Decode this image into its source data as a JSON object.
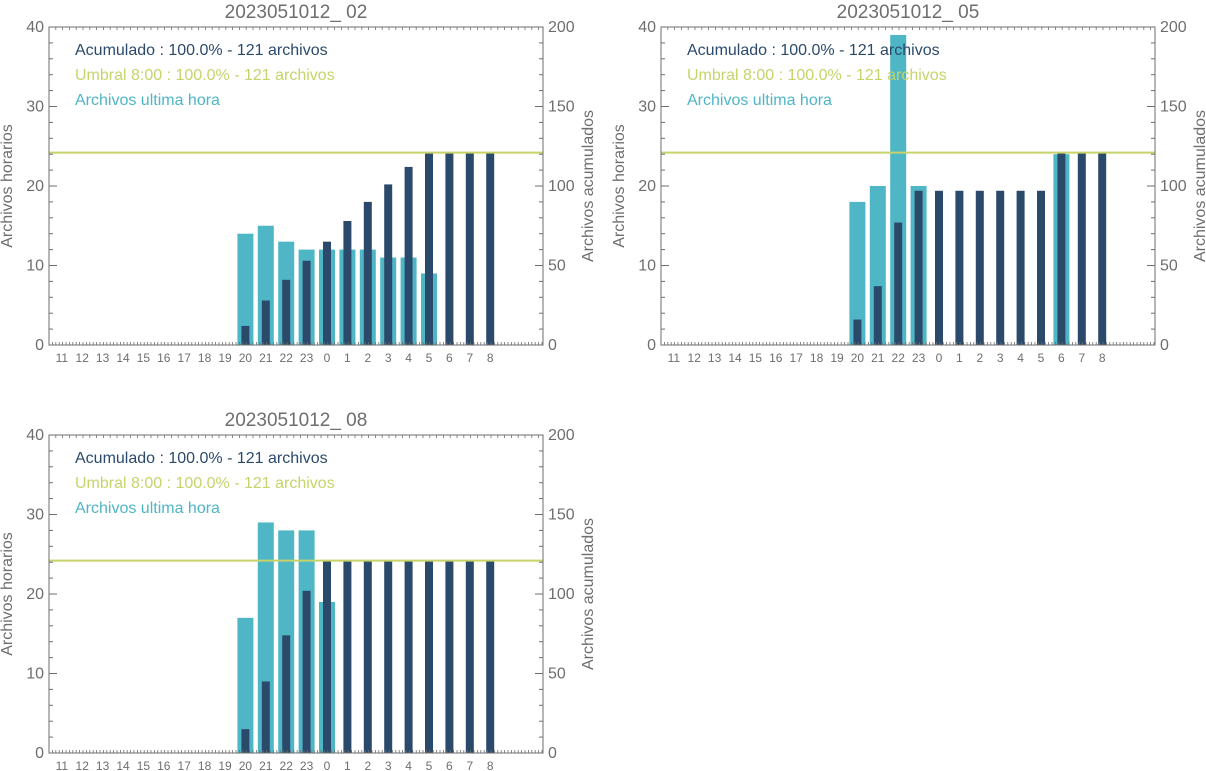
{
  "colors": {
    "hourly": "#4fb6c6",
    "cumulative": "#2b4a6b",
    "threshold": "#c8d36a",
    "axis": "#6e6e6e"
  },
  "chart_data": [
    {
      "type": "bar",
      "title": "2023051012_ 02",
      "ylabel": "Archivos horarios",
      "y2label": "Archivos acumulados",
      "ylim": [
        0,
        40
      ],
      "y2lim": [
        0,
        200
      ],
      "yticks": [
        "0",
        "10",
        "20",
        "30",
        "40"
      ],
      "y2ticks": [
        "0",
        "50",
        "100",
        "150",
        "200"
      ],
      "categories": [
        "11",
        "12",
        "13",
        "14",
        "15",
        "16",
        "17",
        "18",
        "19",
        "20",
        "21",
        "22",
        "23",
        "0",
        "1",
        "2",
        "3",
        "4",
        "5",
        "6",
        "7",
        "8"
      ],
      "legend": [
        "Acumulado : 100.0% - 121 archivos",
        "Umbral 8:00 : 100.0% - 121 archivos",
        "Archivos ultima hora"
      ],
      "threshold": 121,
      "series": [
        {
          "name": "Archivos ultima hora",
          "axis": "left",
          "values": [
            0,
            0,
            0,
            0,
            0,
            0,
            0,
            0,
            0,
            14,
            15,
            13,
            12,
            12,
            12,
            12,
            11,
            11,
            9,
            0,
            0,
            0
          ]
        },
        {
          "name": "Acumulado",
          "axis": "right",
          "values": [
            0,
            0,
            0,
            0,
            0,
            0,
            0,
            0,
            0,
            12,
            28,
            41,
            53,
            65,
            78,
            90,
            101,
            112,
            121,
            121,
            121,
            121
          ]
        }
      ]
    },
    {
      "type": "bar",
      "title": "2023051012_ 05",
      "ylabel": "Archivos horarios",
      "y2label": "Archivos acumulados",
      "ylim": [
        0,
        40
      ],
      "y2lim": [
        0,
        200
      ],
      "yticks": [
        "0",
        "10",
        "20",
        "30",
        "40"
      ],
      "y2ticks": [
        "0",
        "50",
        "100",
        "150",
        "200"
      ],
      "categories": [
        "11",
        "12",
        "13",
        "14",
        "15",
        "16",
        "17",
        "18",
        "19",
        "20",
        "21",
        "22",
        "23",
        "0",
        "1",
        "2",
        "3",
        "4",
        "5",
        "6",
        "7",
        "8"
      ],
      "legend": [
        "Acumulado : 100.0% - 121 archivos",
        "Umbral 8:00 : 100.0% - 121 archivos",
        "Archivos ultima hora"
      ],
      "threshold": 121,
      "series": [
        {
          "name": "Archivos ultima hora",
          "axis": "left",
          "values": [
            0,
            0,
            0,
            0,
            0,
            0,
            0,
            0,
            0,
            18,
            20,
            39,
            20,
            0,
            0,
            0,
            0,
            0,
            0,
            24,
            0,
            0
          ]
        },
        {
          "name": "Acumulado",
          "axis": "right",
          "values": [
            0,
            0,
            0,
            0,
            0,
            0,
            0,
            0,
            0,
            16,
            37,
            77,
            97,
            97,
            97,
            97,
            97,
            97,
            97,
            121,
            121,
            121
          ]
        }
      ]
    },
    {
      "type": "bar",
      "title": "2023051012_ 08",
      "ylabel": "Archivos horarios",
      "y2label": "Archivos acumulados",
      "ylim": [
        0,
        40
      ],
      "y2lim": [
        0,
        200
      ],
      "yticks": [
        "0",
        "10",
        "20",
        "30",
        "40"
      ],
      "y2ticks": [
        "0",
        "50",
        "100",
        "150",
        "200"
      ],
      "categories": [
        "11",
        "12",
        "13",
        "14",
        "15",
        "16",
        "17",
        "18",
        "19",
        "20",
        "21",
        "22",
        "23",
        "0",
        "1",
        "2",
        "3",
        "4",
        "5",
        "6",
        "7",
        "8"
      ],
      "legend": [
        "Acumulado : 100.0% - 121 archivos",
        "Umbral 8:00 : 100.0% - 121 archivos",
        "Archivos ultima hora"
      ],
      "threshold": 121,
      "series": [
        {
          "name": "Archivos ultima hora",
          "axis": "left",
          "values": [
            0,
            0,
            0,
            0,
            0,
            0,
            0,
            0,
            0,
            17,
            29,
            28,
            28,
            19,
            0,
            0,
            0,
            0,
            0,
            0,
            0,
            0
          ]
        },
        {
          "name": "Acumulado",
          "axis": "right",
          "values": [
            0,
            0,
            0,
            0,
            0,
            0,
            0,
            0,
            0,
            15,
            45,
            74,
            102,
            121,
            121,
            121,
            121,
            121,
            121,
            121,
            121,
            121
          ]
        }
      ]
    }
  ]
}
